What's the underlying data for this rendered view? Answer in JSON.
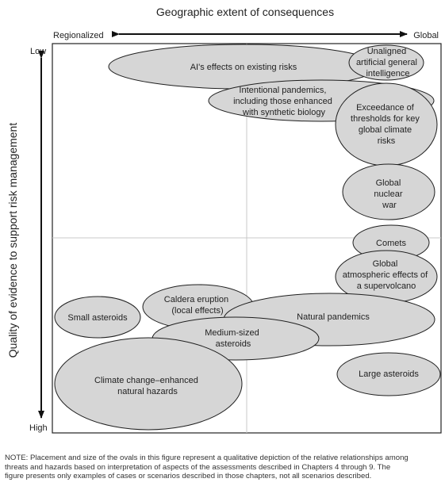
{
  "x_axis": {
    "title": "Geographic extent of consequences",
    "left_label": "Regionalized",
    "right_label": "Global"
  },
  "y_axis": {
    "title": "Quality of evidence to support risk management",
    "top_label": "Low",
    "bottom_label": "High"
  },
  "ovals": [
    {
      "id": "ai-effects",
      "lines": [
        "AI's effects on existing risks"
      ]
    },
    {
      "id": "unaligned-ai",
      "lines": [
        "Unaligned",
        "artificial general",
        "intelligence"
      ]
    },
    {
      "id": "intentional-pandemics",
      "lines": [
        "Intentional pandemics,",
        "including those enhanced",
        "with synthetic biology"
      ]
    },
    {
      "id": "climate-thresholds",
      "lines": [
        "Exceedance of",
        "thresholds for key",
        "global climate",
        "risks"
      ]
    },
    {
      "id": "nuclear-war",
      "lines": [
        "Global",
        "nuclear",
        "war"
      ]
    },
    {
      "id": "comets",
      "lines": [
        "Comets"
      ]
    },
    {
      "id": "supervolcano",
      "lines": [
        "Global",
        "atmospheric effects of",
        "a supervolcano"
      ]
    },
    {
      "id": "small-asteroids",
      "lines": [
        "Small asteroids"
      ]
    },
    {
      "id": "caldera",
      "lines": [
        "Caldera eruption",
        "(local effects)"
      ]
    },
    {
      "id": "natural-pandemics",
      "lines": [
        "Natural pandemics"
      ]
    },
    {
      "id": "medium-asteroids",
      "lines": [
        "Medium-sized",
        "asteroids"
      ]
    },
    {
      "id": "climate-hazards",
      "lines": [
        "Climate change–enhanced",
        "natural hazards"
      ]
    },
    {
      "id": "large-asteroids",
      "lines": [
        "Large asteroids"
      ]
    }
  ],
  "note": {
    "line1": "NOTE: Placement and size of the ovals in this figure represent a qualitative depiction of the relative relationships among",
    "line2": "threats and hazards based on interpretation of aspects of the assessments described in Chapters 4 through 9. The",
    "line3": "figure presents only examples of cases or scenarios described in those chapters, not all scenarios described."
  }
}
